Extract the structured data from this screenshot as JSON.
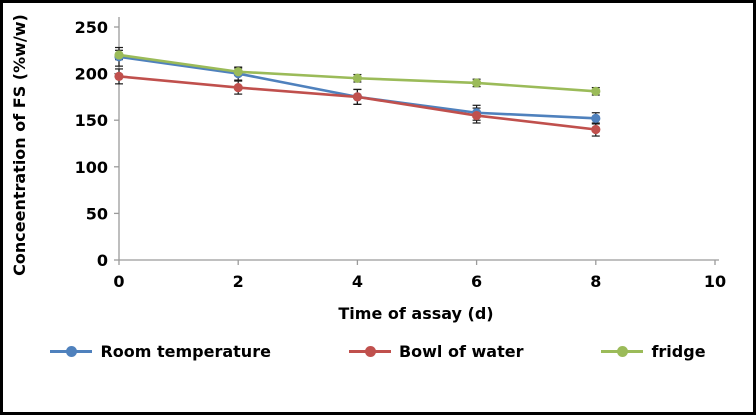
{
  "chart_data": {
    "type": "line",
    "x": [
      0,
      2,
      4,
      6,
      8
    ],
    "series": [
      {
        "name": "Room temperature",
        "color": "#4F81BD",
        "values": [
          218,
          200,
          175,
          158,
          152
        ],
        "errors": [
          10,
          7,
          8,
          8,
          6
        ]
      },
      {
        "name": "Bowl of water",
        "color": "#C0504D",
        "values": [
          197,
          185,
          175,
          155,
          140
        ],
        "errors": [
          8,
          7,
          8,
          8,
          7
        ]
      },
      {
        "name": "fridge",
        "color": "#9BBB59",
        "values": [
          220,
          202,
          195,
          190,
          181
        ],
        "errors": [
          5,
          4,
          4,
          4,
          4
        ]
      }
    ],
    "title": "",
    "xlabel": "Time of assay (d)",
    "ylabel": "Conceentration of FS (%w/w)",
    "xlim": [
      0,
      10
    ],
    "ylim": [
      0,
      250
    ],
    "x_ticks": [
      0,
      2,
      4,
      6,
      8,
      10
    ],
    "y_ticks": [
      0,
      50,
      100,
      150,
      200,
      250
    ],
    "grid": false,
    "legend_position": "bottom",
    "error_bar_color": "#1a1a1a",
    "axis_color": "#9b9b9b"
  }
}
